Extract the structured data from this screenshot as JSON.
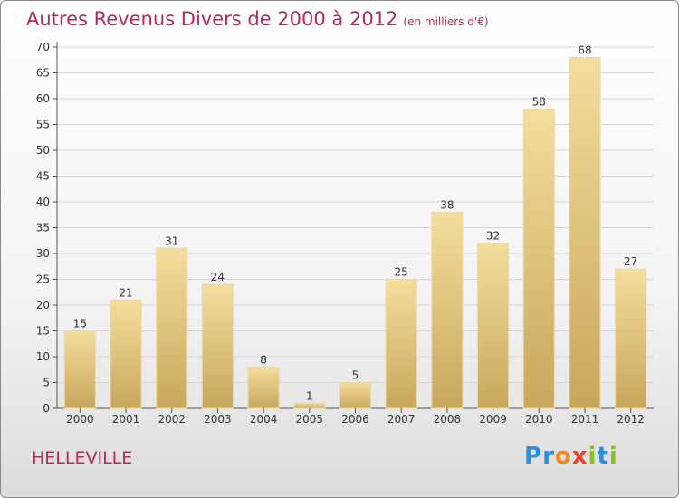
{
  "title": "Autres Revenus Divers de 2000 à 2012",
  "subtitle": "(en milliers d'€)",
  "commune": "HELLEVILLE",
  "logo": {
    "text": "Proxiti",
    "letters": [
      {
        "ch": "P",
        "color": "#2e8fd6"
      },
      {
        "ch": "r",
        "color": "#2e8fd6"
      },
      {
        "ch": "o",
        "color": "#f08a1c"
      },
      {
        "ch": "x",
        "color": "#e8442e"
      },
      {
        "ch": "i",
        "color": "#8cbf26"
      },
      {
        "ch": "t",
        "color": "#2e8fd6"
      },
      {
        "ch": "i",
        "color": "#8cbf26"
      }
    ]
  },
  "colors": {
    "title": "#b52b57",
    "bar_top": "#f5dd9c",
    "bar_bottom": "#c8a75c",
    "grid": "#d6d6d6"
  },
  "chart_data": {
    "type": "bar",
    "title": "Autres Revenus Divers de 2000 à 2012",
    "subtitle": "(en milliers d'€)",
    "categories": [
      "2000",
      "2001",
      "2002",
      "2003",
      "2004",
      "2005",
      "2006",
      "2007",
      "2008",
      "2009",
      "2010",
      "2011",
      "2012"
    ],
    "values": [
      15,
      21,
      31,
      24,
      8,
      1,
      5,
      25,
      38,
      32,
      58,
      68,
      27
    ],
    "ylim": [
      0,
      70
    ],
    "yticks": [
      0,
      5,
      10,
      15,
      20,
      25,
      30,
      35,
      40,
      45,
      50,
      55,
      60,
      65,
      70
    ],
    "grid": true,
    "data_labels": true
  }
}
